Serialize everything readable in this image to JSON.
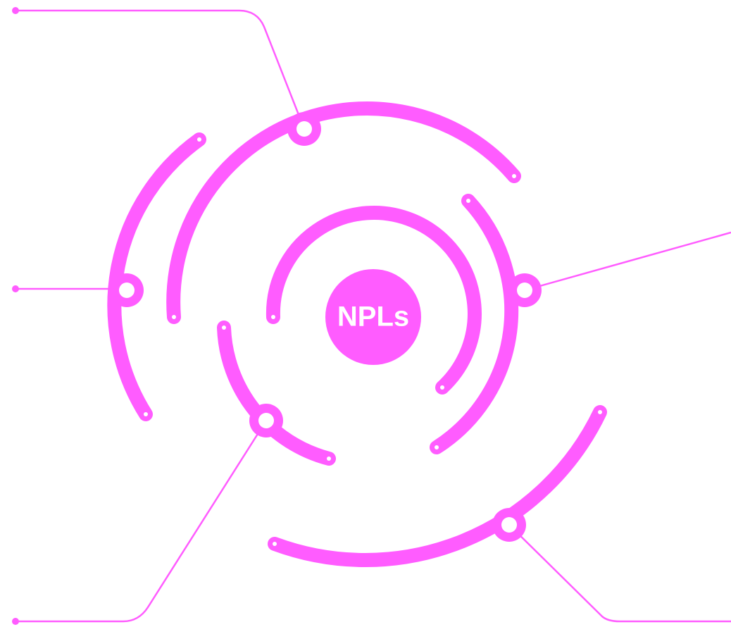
{
  "center": {
    "label": "NPLs"
  }
}
